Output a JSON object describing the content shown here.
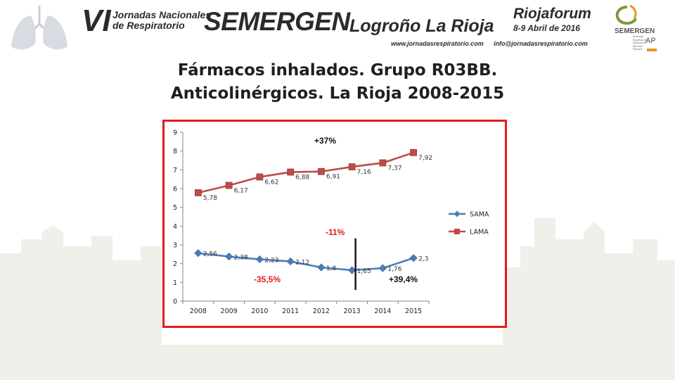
{
  "header": {
    "edition": "VI",
    "event_line1": "Jornadas Nacionales",
    "event_line2": "de Respiratorio",
    "brand": "SEMERGEN",
    "location": "Logroño  La Rioja",
    "website": "www.jornadasrespiratorio.com",
    "venue": "Riojaforum",
    "dates": "8-9 Abril de 2016",
    "email": "info@jornadasrespiratorio.com",
    "logo": {
      "name": "SEMERGEN",
      "suffix": "AP",
      "subtitle": "Sociedad Española de Médicos de Atención Primaria"
    }
  },
  "title": {
    "line1": "Fármacos inhalados. Grupo R03BB.",
    "line2": "Anticolinérgicos. La Rioja 2008-2015"
  },
  "chart_data": {
    "type": "line",
    "categories": [
      "2008",
      "2009",
      "2010",
      "2011",
      "2012",
      "2013",
      "2014",
      "2015"
    ],
    "series": [
      {
        "name": "SAMA",
        "values": [
          2.56,
          2.38,
          2.23,
          2.12,
          1.8,
          1.65,
          1.76,
          2.3
        ],
        "labels": [
          "2,56",
          "2,38",
          "2,23",
          "2,12",
          "1,8",
          "1,65",
          "1,76",
          "2,3"
        ],
        "color": "#4a7ebb",
        "marker": "diamond"
      },
      {
        "name": "LAMA",
        "values": [
          5.78,
          6.17,
          6.62,
          6.88,
          6.91,
          7.16,
          7.37,
          7.92
        ],
        "labels": [
          "5,78",
          "6,17",
          "6,62",
          "6,88",
          "6,91",
          "7,16",
          "7,37",
          "7,92"
        ],
        "color": "#be4b48",
        "marker": "square"
      }
    ],
    "ylim": [
      0,
      9
    ],
    "yticks": [
      "0",
      "1",
      "2",
      "3",
      "4",
      "5",
      "6",
      "7",
      "8",
      "9"
    ],
    "grid": false,
    "legend": "right",
    "annotations": [
      {
        "text": "+37%",
        "color": "#111111"
      },
      {
        "text": "-11%",
        "color": "#e21c1c"
      },
      {
        "text": "-35,5%",
        "color": "#e21c1c"
      },
      {
        "text": "+39,4%",
        "color": "#111111"
      }
    ],
    "divider_at": "2013"
  },
  "colors": {
    "frame": "#e21c1c",
    "sama": "#4a7ebb",
    "lama": "#be4b48"
  }
}
